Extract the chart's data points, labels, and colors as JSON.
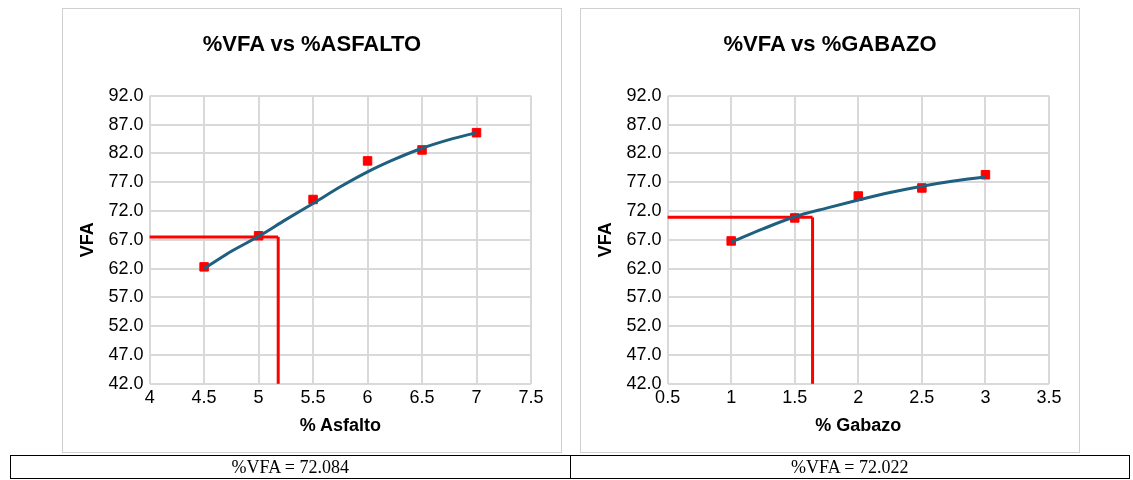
{
  "chart_data": [
    {
      "type": "scatter",
      "title": "%VFA vs %ASFALTO",
      "xlabel": "% Asfalto",
      "ylabel": "VFA",
      "xlim": [
        4,
        7.5
      ],
      "xticks": [
        4,
        4.5,
        5,
        5.5,
        6,
        6.5,
        7,
        7.5
      ],
      "ylim": [
        42,
        92
      ],
      "yticks": [
        {
          "value": 42,
          "label": "42.0"
        },
        {
          "value": 47,
          "label": "47.0"
        },
        {
          "value": 52,
          "label": "52.0"
        },
        {
          "value": 57,
          "label": "57.0"
        },
        {
          "value": 62,
          "label": "62.0"
        },
        {
          "value": 67,
          "label": "67.0"
        },
        {
          "value": 72,
          "label": "72.0"
        },
        {
          "value": 77,
          "label": "77.0"
        },
        {
          "value": 82,
          "label": "82.0"
        },
        {
          "value": 87,
          "label": "87.0"
        },
        {
          "value": 92,
          "label": "92.0"
        }
      ],
      "grid": true,
      "legend": false,
      "series": [
        {
          "type": "line",
          "marker": "none",
          "color": "#1f5f7f",
          "x": [
            4.5,
            4.75,
            5,
            5.25,
            5.5,
            5.75,
            6,
            6.25,
            6.5,
            6.75,
            7
          ],
          "values": [
            62.0,
            65.0,
            67.6,
            70.5,
            73.3,
            76.2,
            78.8,
            81.0,
            82.9,
            84.4,
            85.6
          ]
        },
        {
          "marker": "square",
          "color": "#ff0000",
          "x": [
            4.5,
            5,
            5.5,
            6,
            6.5,
            7
          ],
          "values": [
            62.3,
            67.7,
            74.0,
            80.7,
            82.6,
            85.6
          ]
        }
      ],
      "ref_lines": [
        {
          "axis": "y",
          "value": 67.5,
          "color": "#ff0000"
        },
        {
          "axis": "x",
          "value": 5.18,
          "color": "#ff0000"
        }
      ],
      "annotations": [
        "%VFA = 72.084"
      ]
    },
    {
      "type": "scatter",
      "title": "%VFA vs %GABAZO",
      "xlabel": "% Gabazo",
      "ylabel": "VFA",
      "xlim": [
        0.5,
        3.5
      ],
      "xticks": [
        0.5,
        1,
        1.5,
        2,
        2.5,
        3,
        3.5
      ],
      "ylim": [
        42,
        92
      ],
      "yticks": [
        {
          "value": 42,
          "label": "42.0"
        },
        {
          "value": 47,
          "label": "47.0"
        },
        {
          "value": 52,
          "label": "52.0"
        },
        {
          "value": 57,
          "label": "57.0"
        },
        {
          "value": 62,
          "label": "62.0"
        },
        {
          "value": 67,
          "label": "67.0"
        },
        {
          "value": 72,
          "label": "72.0"
        },
        {
          "value": 77,
          "label": "77.0"
        },
        {
          "value": 82,
          "label": "82.0"
        },
        {
          "value": 87,
          "label": "87.0"
        },
        {
          "value": 92,
          "label": "92.0"
        }
      ],
      "grid": true,
      "legend": false,
      "series": [
        {
          "type": "line",
          "marker": "none",
          "color": "#1f5f7f",
          "x": [
            1,
            1.25,
            1.5,
            1.75,
            2,
            2.25,
            2.5,
            2.75,
            3
          ],
          "values": [
            66.6,
            68.9,
            71.0,
            72.5,
            73.9,
            75.2,
            76.3,
            77.2,
            77.9
          ]
        },
        {
          "marker": "square",
          "color": "#ff0000",
          "x": [
            1,
            1.5,
            2,
            2.5,
            3
          ],
          "values": [
            66.8,
            70.8,
            74.6,
            76.0,
            78.3
          ]
        }
      ],
      "ref_lines": [
        {
          "axis": "y",
          "value": 70.9,
          "color": "#ff0000"
        },
        {
          "axis": "x",
          "value": 1.64,
          "color": "#ff0000"
        }
      ],
      "annotations": [
        "%VFA = 72.022"
      ]
    }
  ]
}
